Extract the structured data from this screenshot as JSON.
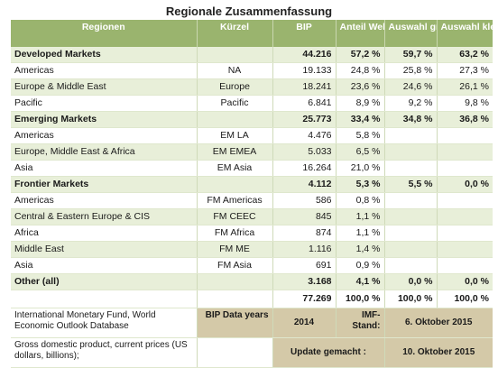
{
  "title": "Regionale Zusammenfassung",
  "headers": [
    "Regionen",
    "Kürzel",
    "BIP",
    "Anteil Welt",
    "Auswahl gross",
    "Auswahl klein"
  ],
  "rows": [
    {
      "bold": true,
      "cells": [
        "Developed Markets",
        "",
        "44.216",
        "57,2 %",
        "59,7 %",
        "63,2 %"
      ]
    },
    {
      "bold": false,
      "cells": [
        "Americas",
        "NA",
        "19.133",
        "24,8 %",
        "25,8 %",
        "27,3 %"
      ]
    },
    {
      "bold": false,
      "cells": [
        "Europe & Middle East",
        "Europe",
        "18.241",
        "23,6 %",
        "24,6 %",
        "26,1 %"
      ]
    },
    {
      "bold": false,
      "cells": [
        "Pacific",
        "Pacific",
        "6.841",
        "8,9 %",
        "9,2 %",
        "9,8 %"
      ]
    },
    {
      "bold": true,
      "cells": [
        "Emerging Markets",
        "",
        "25.773",
        "33,4 %",
        "34,8 %",
        "36,8 %"
      ]
    },
    {
      "bold": false,
      "cells": [
        "Americas",
        "EM LA",
        "4.476",
        "5,8 %",
        "",
        ""
      ]
    },
    {
      "bold": false,
      "cells": [
        "Europe, Middle East & Africa",
        "EM EMEA",
        "5.033",
        "6,5 %",
        "",
        ""
      ]
    },
    {
      "bold": false,
      "cells": [
        "Asia",
        "EM Asia",
        "16.264",
        "21,0 %",
        "",
        ""
      ]
    },
    {
      "bold": true,
      "cells": [
        "Frontier Markets",
        "",
        "4.112",
        "5,3 %",
        "5,5 %",
        "0,0 %"
      ]
    },
    {
      "bold": false,
      "cells": [
        "Americas",
        "FM Americas",
        "586",
        "0,8 %",
        "",
        ""
      ]
    },
    {
      "bold": false,
      "cells": [
        "Central & Eastern Europe & CIS",
        "FM CEEC",
        "845",
        "1,1 %",
        "",
        ""
      ]
    },
    {
      "bold": false,
      "cells": [
        "Africa",
        "FM Africa",
        "874",
        "1,1 %",
        "",
        ""
      ]
    },
    {
      "bold": false,
      "cells": [
        "Middle East",
        "FM ME",
        "1.116",
        "1,4 %",
        "",
        ""
      ]
    },
    {
      "bold": false,
      "cells": [
        "Asia",
        "FM Asia",
        "691",
        "0,9 %",
        "",
        ""
      ]
    },
    {
      "bold": true,
      "cells": [
        "Other (all)",
        "",
        "3.168",
        "4,1 %",
        "0,0 %",
        "0,0 %"
      ]
    }
  ],
  "total": [
    "",
    "",
    "77.269",
    "100,0 %",
    "100,0 %",
    "100,0 %"
  ],
  "footer": {
    "source": "International Monetary Fund, World Economic Outlook Database",
    "bip_label": "BIP Data years",
    "bip_year": "2014",
    "imf_label": "IMF-Stand:",
    "imf_date": "6. Oktober 2015",
    "note": "Gross domestic product, current prices (US dollars, billions);",
    "update_label": "Update gemacht :",
    "update_date": "10. Oktober 2015"
  }
}
